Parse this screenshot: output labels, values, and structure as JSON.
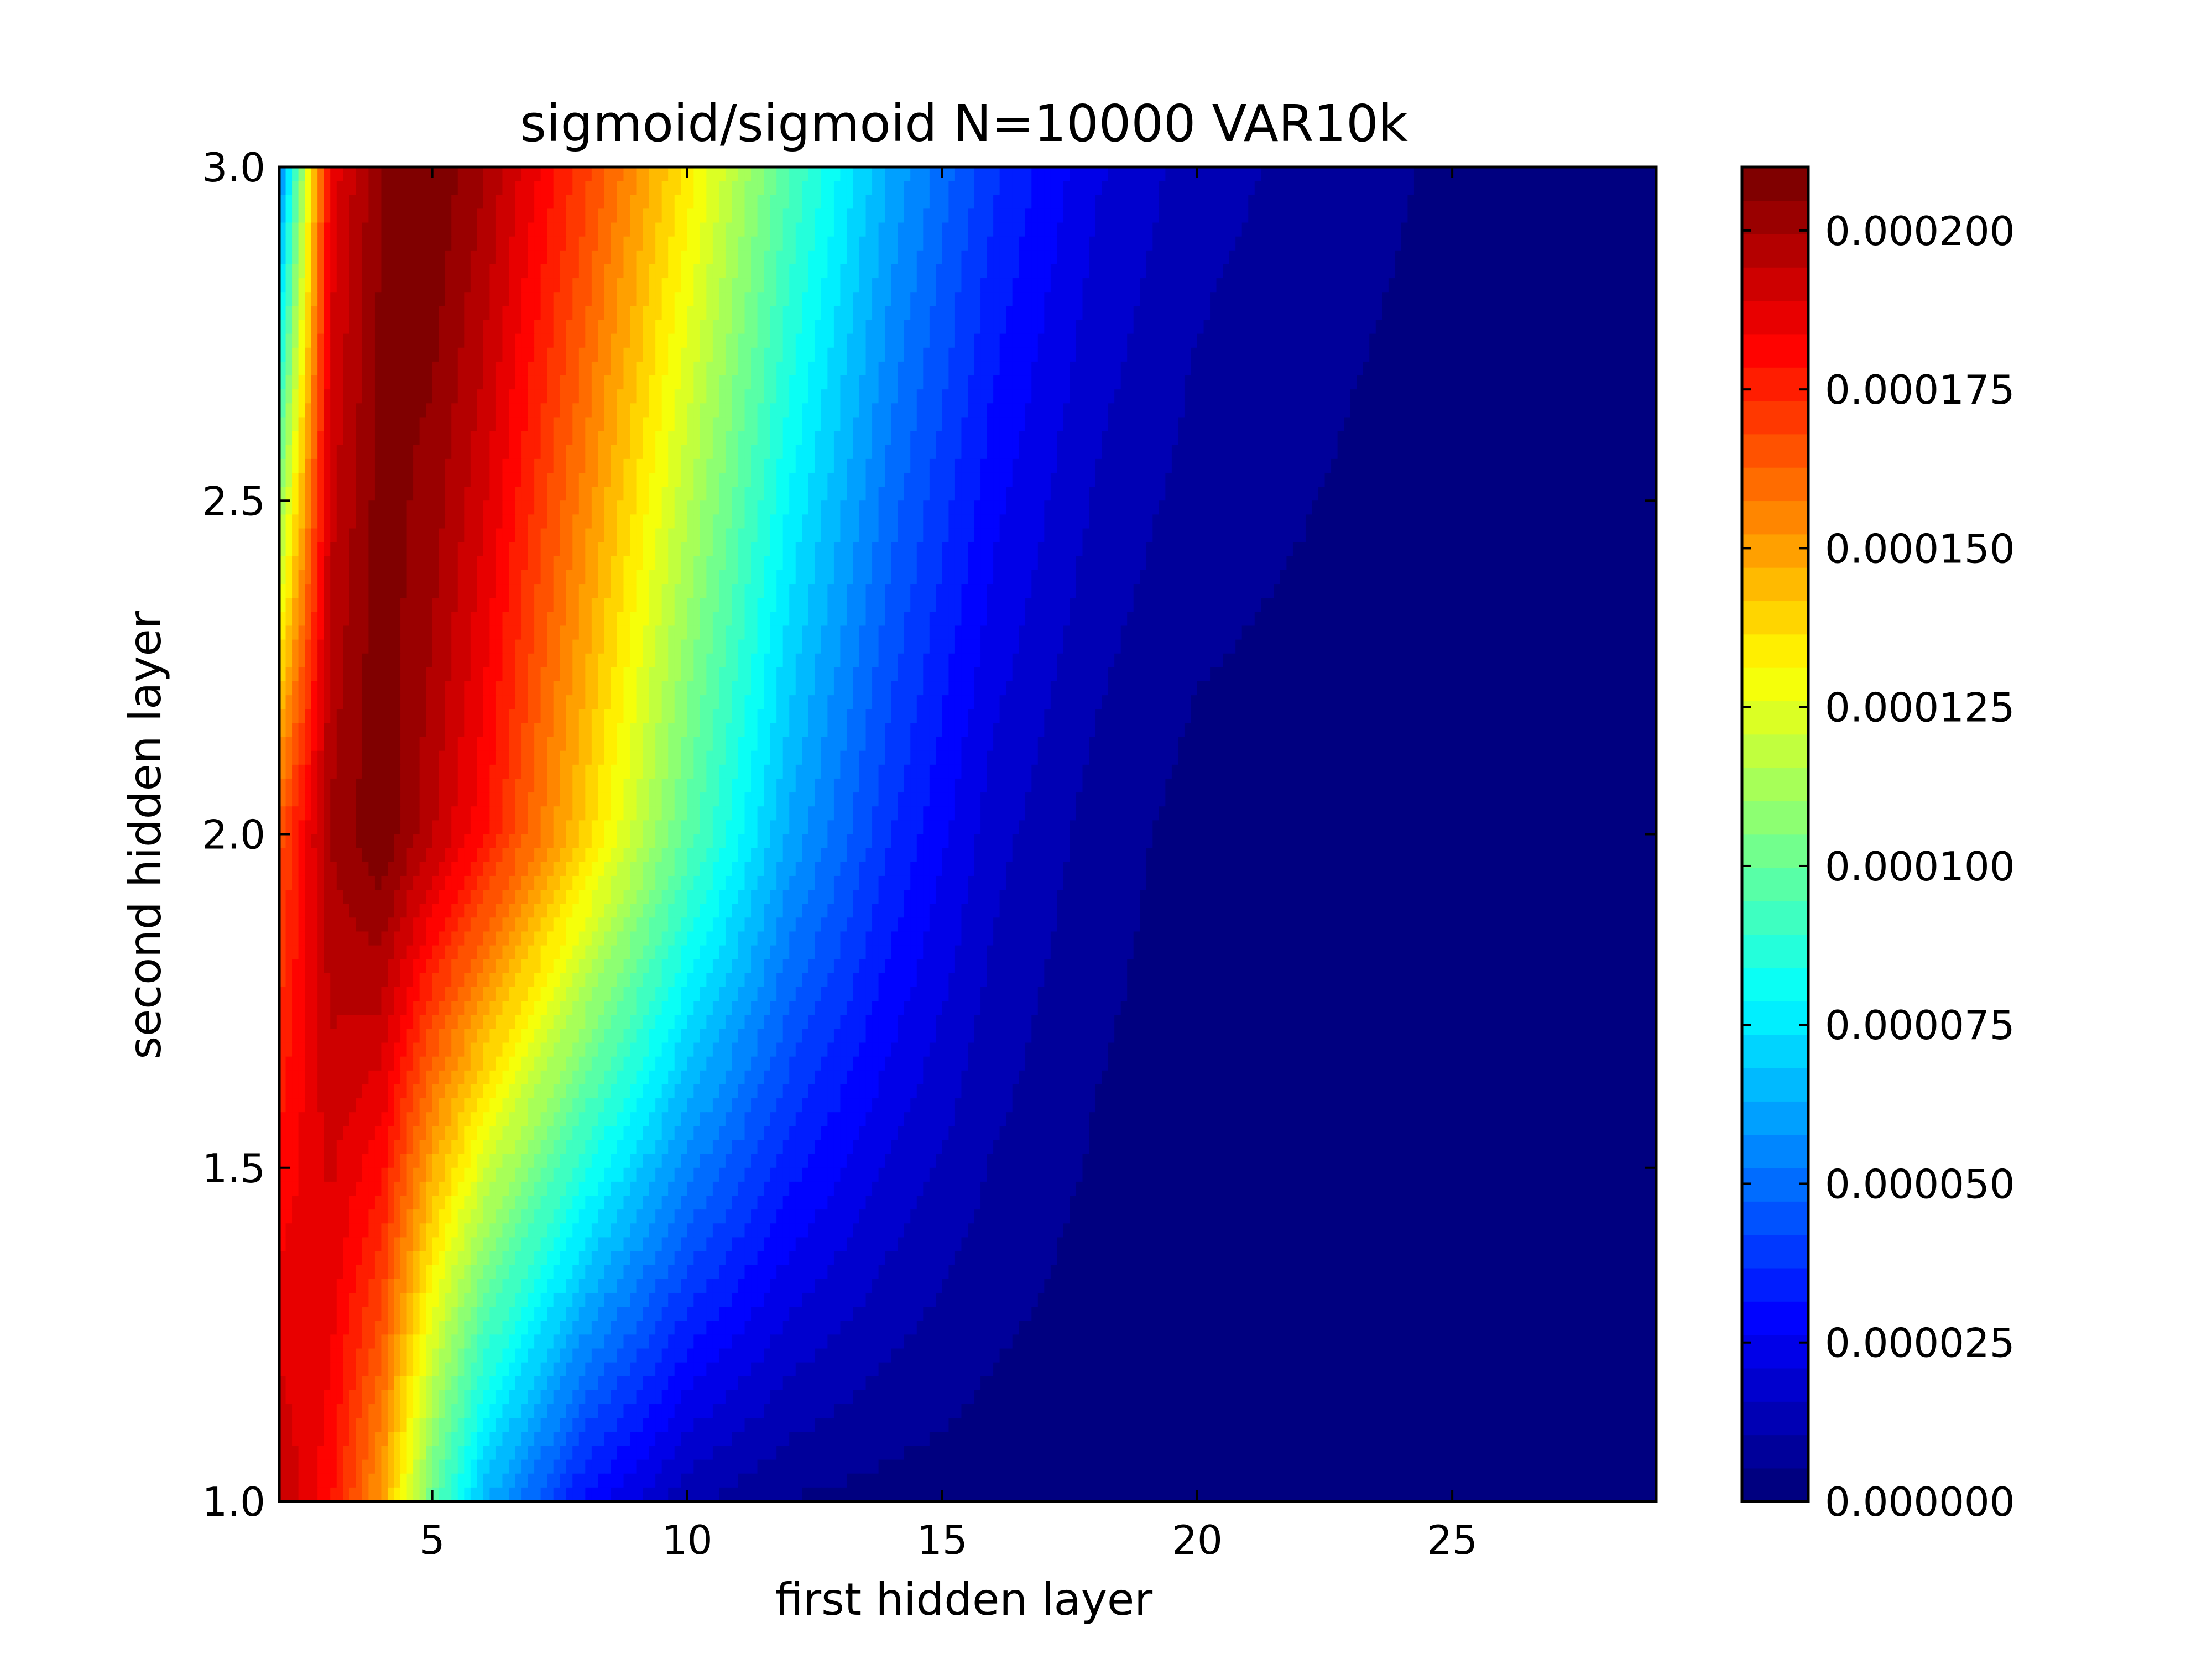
{
  "chart_data": {
    "type": "heatmap",
    "title": "sigmoid/sigmoid N=10000 VAR10k",
    "xlabel": "first hidden layer",
    "ylabel": "second hidden layer",
    "xlim": [
      2,
      29
    ],
    "ylim": [
      1.0,
      3.0
    ],
    "x_ticks": [
      "5",
      "10",
      "15",
      "20",
      "25"
    ],
    "y_ticks": [
      "1.0",
      "1.5",
      "2.0",
      "2.5",
      "3.0"
    ],
    "colormap": "jet",
    "colorbar": {
      "range": [
        0.0,
        0.00021
      ],
      "ticks": [
        "0.000000",
        "0.000025",
        "0.000050",
        "0.000075",
        "0.000100",
        "0.000125",
        "0.000150",
        "0.000175",
        "0.000200"
      ]
    },
    "x": [
      2,
      3,
      4,
      5,
      6,
      8,
      10,
      12,
      14,
      16,
      18,
      20,
      23,
      26,
      29
    ],
    "y": [
      1.0,
      2.0,
      3.0
    ],
    "z": [
      [
        0.000195,
        0.00018,
        0.00015,
        0.0001,
        6.5e-05,
        3e-05,
        1.2e-05,
        5e-06,
        3e-06,
        2e-06,
        1e-06,
        1e-06,
        5e-07,
        3e-07,
        2e-07
      ],
      [
        0.000165,
        0.0002,
        0.00021,
        0.000195,
        0.00018,
        0.00014,
        9.8e-05,
        6.2e-05,
        3.7e-05,
        1.8e-05,
        8e-06,
        3e-06,
        2e-06,
        1e-06,
        5e-07
      ],
      [
        5e-05,
        0.000185,
        0.000205,
        0.00021,
        0.0002,
        0.00017,
        0.000135,
        9.5e-05,
        6.2e-05,
        3.8e-05,
        2.2e-05,
        1.3e-05,
        7e-06,
        3e-06,
        1e-06
      ]
    ],
    "colors": {
      "frame": "#000000",
      "background": "#ffffff"
    }
  }
}
